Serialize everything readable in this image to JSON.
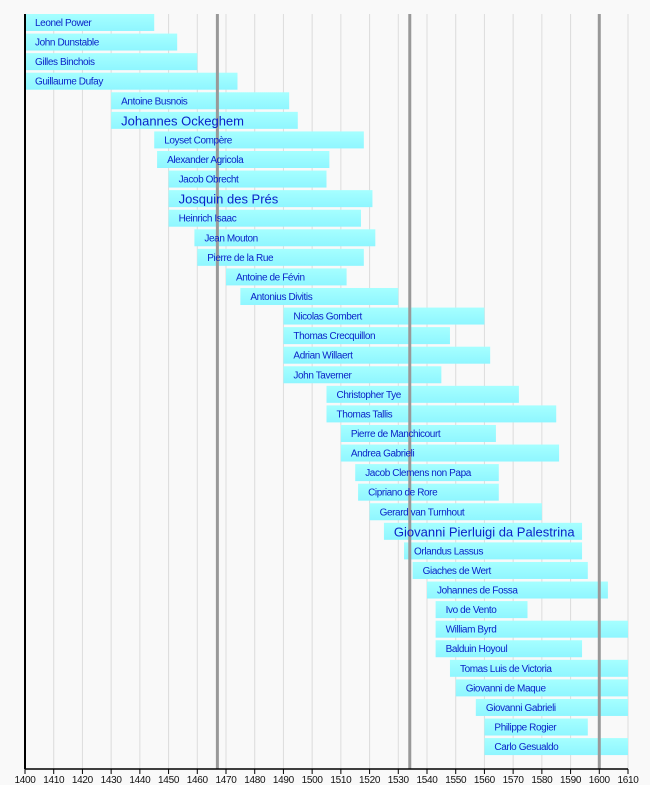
{
  "chart_data": {
    "type": "timeline",
    "title": "",
    "xlabel": "",
    "ylabel": "",
    "xlim": [
      1400,
      1610
    ],
    "xticks": [
      1400,
      1410,
      1420,
      1430,
      1440,
      1450,
      1460,
      1470,
      1480,
      1490,
      1500,
      1510,
      1520,
      1530,
      1540,
      1550,
      1560,
      1570,
      1580,
      1590,
      1600,
      1610
    ],
    "grid": true,
    "marker_lines": [
      1467,
      1534,
      1600
    ],
    "colors": {
      "bar": "#99ffff",
      "text": "#0a22c8",
      "grid": "#dddddd",
      "marker": "#999999",
      "axis": "#000000"
    },
    "series": [
      {
        "name": "Leonel Power",
        "start": 1400,
        "end": 1445
      },
      {
        "name": "John Dunstable",
        "start": 1400,
        "end": 1453
      },
      {
        "name": "Gilles Binchois",
        "start": 1400,
        "end": 1460
      },
      {
        "name": "Guillaume Dufay",
        "start": 1400,
        "end": 1474
      },
      {
        "name": "Antoine Busnois",
        "start": 1430,
        "end": 1492
      },
      {
        "name": "Johannes Ockeghem",
        "start": 1430,
        "end": 1495,
        "emphasis": true
      },
      {
        "name": "Loyset Compère",
        "start": 1445,
        "end": 1518
      },
      {
        "name": "Alexander Agricola",
        "start": 1446,
        "end": 1506
      },
      {
        "name": "Jacob Obrecht",
        "start": 1450,
        "end": 1505
      },
      {
        "name": "Josquin des Prés",
        "start": 1450,
        "end": 1521,
        "emphasis": true
      },
      {
        "name": "Heinrich Isaac",
        "start": 1450,
        "end": 1517
      },
      {
        "name": "Jean Mouton",
        "start": 1459,
        "end": 1522
      },
      {
        "name": "Pierre de la Rue",
        "start": 1460,
        "end": 1518
      },
      {
        "name": "Antoine de Févin",
        "start": 1470,
        "end": 1512
      },
      {
        "name": "Antonius Divitis",
        "start": 1475,
        "end": 1530
      },
      {
        "name": "Nicolas Gombert",
        "start": 1490,
        "end": 1560
      },
      {
        "name": "Thomas Crecquillon",
        "start": 1490,
        "end": 1548
      },
      {
        "name": "Adrian Willaert",
        "start": 1490,
        "end": 1562
      },
      {
        "name": "John Taverner",
        "start": 1490,
        "end": 1545
      },
      {
        "name": "Christopher Tye",
        "start": 1505,
        "end": 1572
      },
      {
        "name": "Thomas Tallis",
        "start": 1505,
        "end": 1585
      },
      {
        "name": "Pierre de Manchicourt",
        "start": 1510,
        "end": 1564
      },
      {
        "name": "Andrea Gabrieli",
        "start": 1510,
        "end": 1586
      },
      {
        "name": "Jacob Clemens non Papa",
        "start": 1515,
        "end": 1565
      },
      {
        "name": "Cipriano de Rore",
        "start": 1516,
        "end": 1565
      },
      {
        "name": "Gerard van Turnhout",
        "start": 1520,
        "end": 1580
      },
      {
        "name": "Giovanni Pierluigi da Palestrina",
        "start": 1525,
        "end": 1594,
        "emphasis": true
      },
      {
        "name": "Orlandus Lassus",
        "start": 1532,
        "end": 1594
      },
      {
        "name": "Giaches de Wert",
        "start": 1535,
        "end": 1596
      },
      {
        "name": "Johannes de Fossa",
        "start": 1540,
        "end": 1603
      },
      {
        "name": "Ivo de Vento",
        "start": 1543,
        "end": 1575
      },
      {
        "name": "William Byrd",
        "start": 1543,
        "end": 1610
      },
      {
        "name": "Balduin Hoyoul",
        "start": 1543,
        "end": 1594
      },
      {
        "name": "Tomas Luis de Victoria",
        "start": 1548,
        "end": 1610
      },
      {
        "name": "Giovanni de Maque",
        "start": 1550,
        "end": 1610
      },
      {
        "name": "Giovanni Gabrieli",
        "start": 1557,
        "end": 1610
      },
      {
        "name": "Philippe Rogier",
        "start": 1560,
        "end": 1596
      },
      {
        "name": "Carlo Gesualdo",
        "start": 1560,
        "end": 1610
      }
    ]
  }
}
